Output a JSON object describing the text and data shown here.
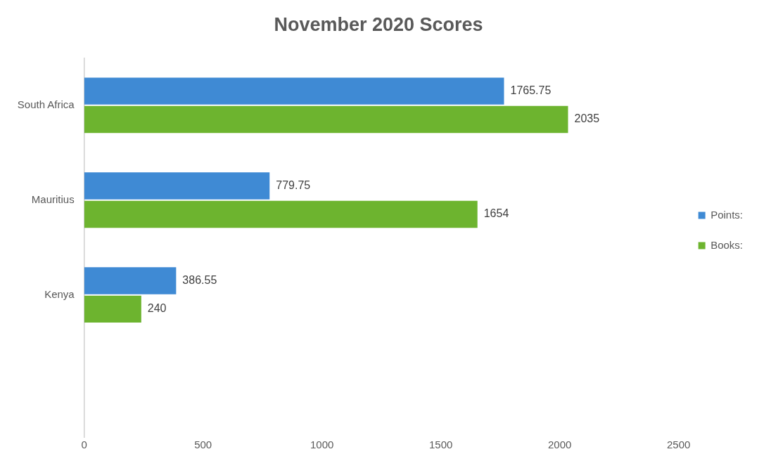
{
  "chart_data": {
    "type": "bar",
    "orientation": "horizontal",
    "title": "November 2020 Scores",
    "categories": [
      "South Africa",
      "Mauritius",
      "Kenya",
      null
    ],
    "series": [
      {
        "name": "Points:",
        "color": "#3f8ad4",
        "values": [
          1765.75,
          779.75,
          386.55,
          null
        ]
      },
      {
        "name": "Books:",
        "color": "#6db42f",
        "values": [
          2035,
          1654,
          240,
          null
        ]
      }
    ],
    "xlim": [
      0,
      2500
    ],
    "xticks": [
      0,
      500,
      1000,
      1500,
      2000,
      2500
    ],
    "grid": false,
    "legend": "right",
    "data_labels": true
  }
}
